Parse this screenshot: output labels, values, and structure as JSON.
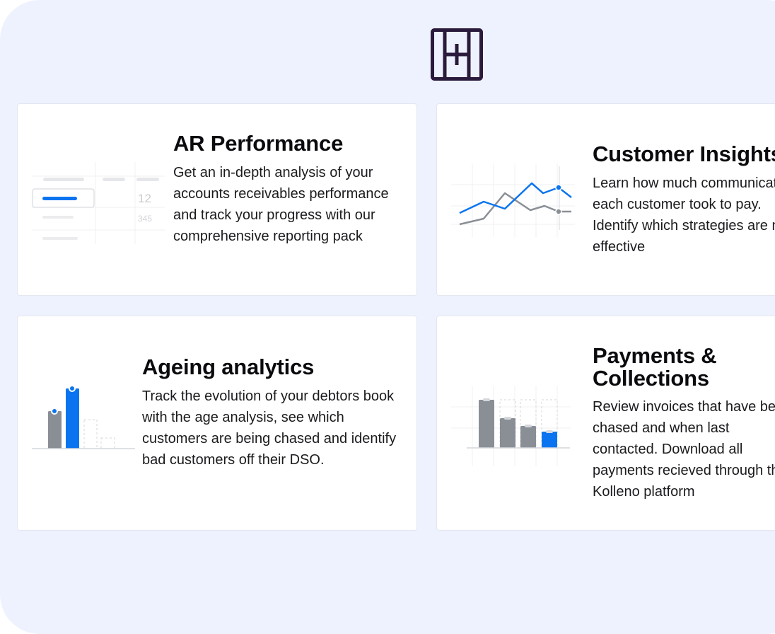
{
  "logo": {
    "icon": "brand-logo-icon",
    "color": "#2a1a3c"
  },
  "colors": {
    "background": "#eef2fe",
    "accent": "#0a74f0",
    "grey": "#8a8f96"
  },
  "cards": [
    {
      "title": "AR Performance",
      "body": "Get an in-depth analysis of your accounts receivables performance and track your progress with our comprehensive reporting pack",
      "illustration": {
        "value_a": "12",
        "value_b": "345"
      }
    },
    {
      "title": "Customer Insights",
      "body": "Learn how much communication each customer took to pay. Identify which strategies are most effective"
    },
    {
      "title": "Ageing analytics",
      "body": "Track the evolution of your debtors book with the age analysis, see which customers are being chased and identify bad customers off their DSO."
    },
    {
      "title": "Payments & Collections",
      "body": "Review invoices that have been chased and when last contacted. Download all payments recieved through the Kolleno platform"
    }
  ]
}
